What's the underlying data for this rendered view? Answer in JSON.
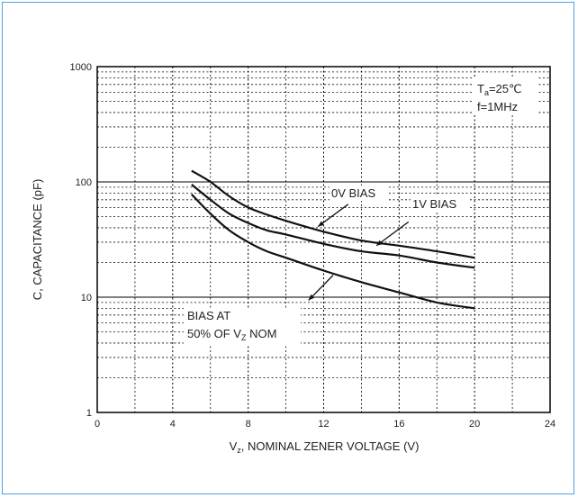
{
  "chart_data": {
    "type": "line",
    "xlabel_main": "V",
    "xlabel_sub": "z",
    "xlabel_rest": ", NOMINAL ZENER VOLTAGE (V)",
    "ylabel": "C, CAPACITANCE (pF)",
    "xlim": [
      0,
      24
    ],
    "ylim": [
      1,
      1000
    ],
    "yscale": "log",
    "grid": true,
    "x_ticks": [
      "0",
      "4",
      "8",
      "12",
      "16",
      "20",
      "24"
    ],
    "y_ticks": [
      "1",
      "10",
      "100",
      "1000"
    ],
    "conditions": {
      "ta_main": "T",
      "ta_sub": "a",
      "ta_rest": "=25℃",
      "freq": "f=1MHz"
    },
    "series": [
      {
        "name": "0V BIAS",
        "x": [
          5,
          6,
          7,
          8,
          9,
          10,
          12,
          14,
          16,
          18,
          20
        ],
        "y": [
          125,
          100,
          75,
          60,
          52,
          46,
          37,
          31,
          28,
          25,
          22
        ]
      },
      {
        "name": "1V BIAS",
        "x": [
          5,
          6,
          7,
          8,
          9,
          10,
          12,
          14,
          16,
          18,
          20
        ],
        "y": [
          95,
          70,
          53,
          44,
          38,
          35,
          29,
          25,
          23,
          20,
          18
        ]
      },
      {
        "name": "BIAS AT 50% OF Vz NOM",
        "x": [
          5,
          6,
          7,
          8,
          9,
          10,
          12,
          14,
          16,
          18,
          20
        ],
        "y": [
          78,
          53,
          38,
          30,
          25,
          22,
          17,
          13.5,
          11,
          9,
          8
        ]
      }
    ],
    "annotations": {
      "bias0": "0V BIAS",
      "bias1": "1V BIAS",
      "bias50_line1": "BIAS AT",
      "bias50_line2_pre": "50% OF V",
      "bias50_line2_sub": "Z",
      "bias50_line2_post": " NOM"
    }
  }
}
